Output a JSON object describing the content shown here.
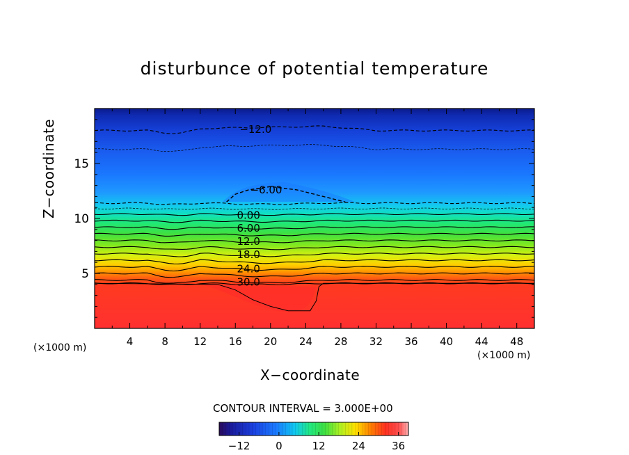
{
  "chart_data": {
    "type": "heatmap",
    "title": "disturbunce of potential temperature",
    "xlabel": "X−coordinate",
    "ylabel": "Z−coordinate",
    "x_unit_left": "(×1000 m)",
    "x_unit_right": "(×1000 m)",
    "xlim": [
      0,
      50
    ],
    "ylim": [
      0,
      20
    ],
    "x_ticks": [
      4,
      8,
      12,
      16,
      20,
      24,
      28,
      32,
      36,
      40,
      44,
      48
    ],
    "y_ticks": [
      5,
      10,
      15
    ],
    "contour_labels": [
      {
        "text": "−12.0",
        "x": 18.3,
        "y": 18.1
      },
      {
        "text": "−6.00",
        "x": 19.5,
        "y": 12.6
      },
      {
        "text": "0.00",
        "x": 17.5,
        "y": 10.3
      },
      {
        "text": "6.00",
        "x": 17.5,
        "y": 9.1
      },
      {
        "text": "12.0",
        "x": 17.5,
        "y": 7.9
      },
      {
        "text": "18.0",
        "x": 17.5,
        "y": 6.7
      },
      {
        "text": "24.0",
        "x": 17.5,
        "y": 5.4
      },
      {
        "text": "30.0",
        "x": 17.5,
        "y": 4.2
      }
    ],
    "colorbar": {
      "min": -18,
      "max": 39,
      "tick_labels": [
        "−12",
        "0",
        "12",
        "24",
        "36"
      ],
      "tick_values": [
        -12,
        0,
        12,
        24,
        36
      ]
    },
    "contour_interval_text": "CONTOUR INTERVAL = 3.000E+00"
  }
}
